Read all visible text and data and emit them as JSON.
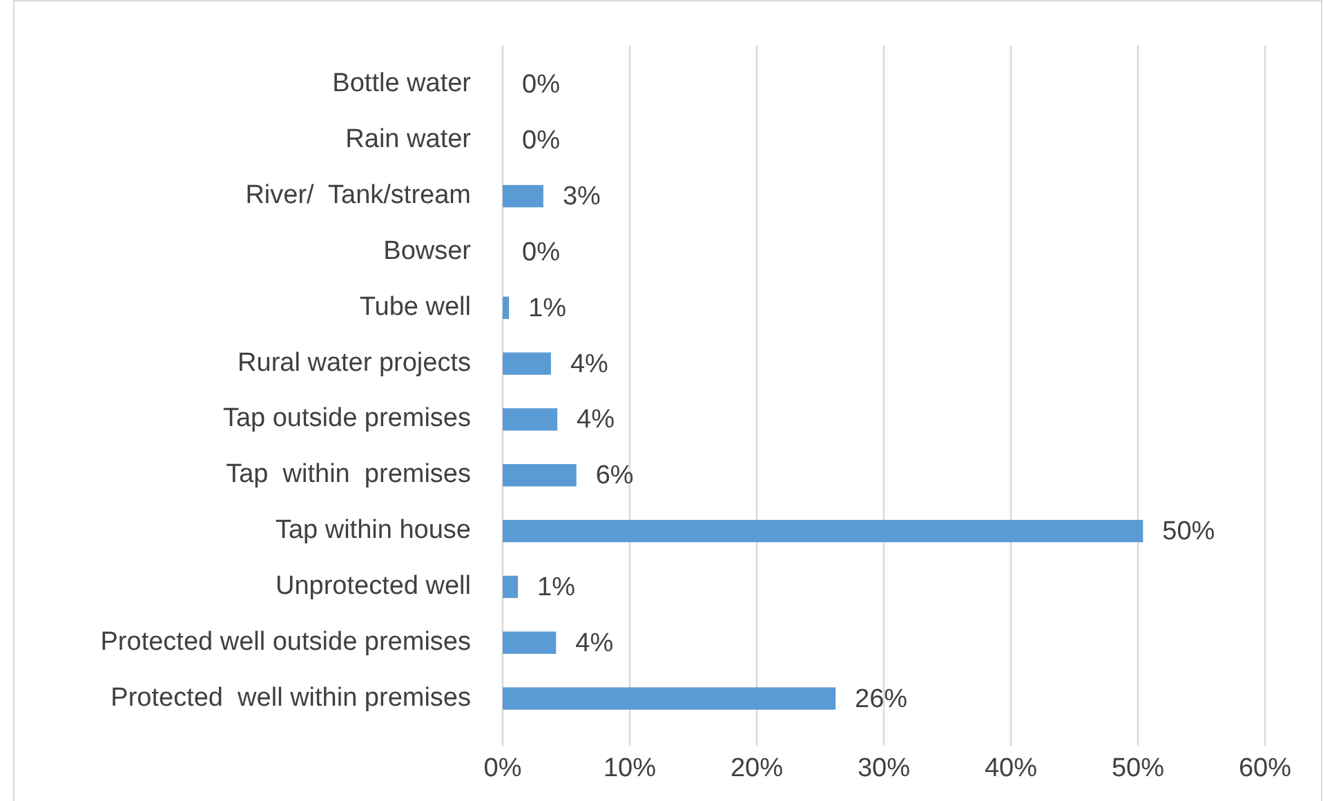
{
  "chart_data": {
    "type": "bar",
    "orientation": "horizontal",
    "categories": [
      "Bottle water",
      "Rain water",
      "River/  Tank/stream",
      "Bowser",
      "Tube well",
      "Rural water projects",
      "Tap outside premises",
      "Tap  within  premises",
      "Tap within house",
      "Unprotected well",
      "Protected well outside premises",
      "Protected  well within premises"
    ],
    "values": [
      0,
      0,
      3.2,
      0,
      0.5,
      3.8,
      4.3,
      5.8,
      50.4,
      1.2,
      4.2,
      26.2
    ],
    "value_labels": [
      "0%",
      "0%",
      "3%",
      "0%",
      "1%",
      "4%",
      "4%",
      "6%",
      "50%",
      "1%",
      "4%",
      "26%"
    ],
    "color": "#5b9bd5",
    "xlim": [
      0,
      60
    ],
    "xticks": [
      {
        "value": 0,
        "label": "0%"
      },
      {
        "value": 10,
        "label": "10%"
      },
      {
        "value": 20,
        "label": "20%"
      },
      {
        "value": 30,
        "label": "30%"
      },
      {
        "value": 40,
        "label": "40%"
      },
      {
        "value": 50,
        "label": "50%"
      },
      {
        "value": 60,
        "label": "60%"
      }
    ],
    "grid": "x"
  }
}
